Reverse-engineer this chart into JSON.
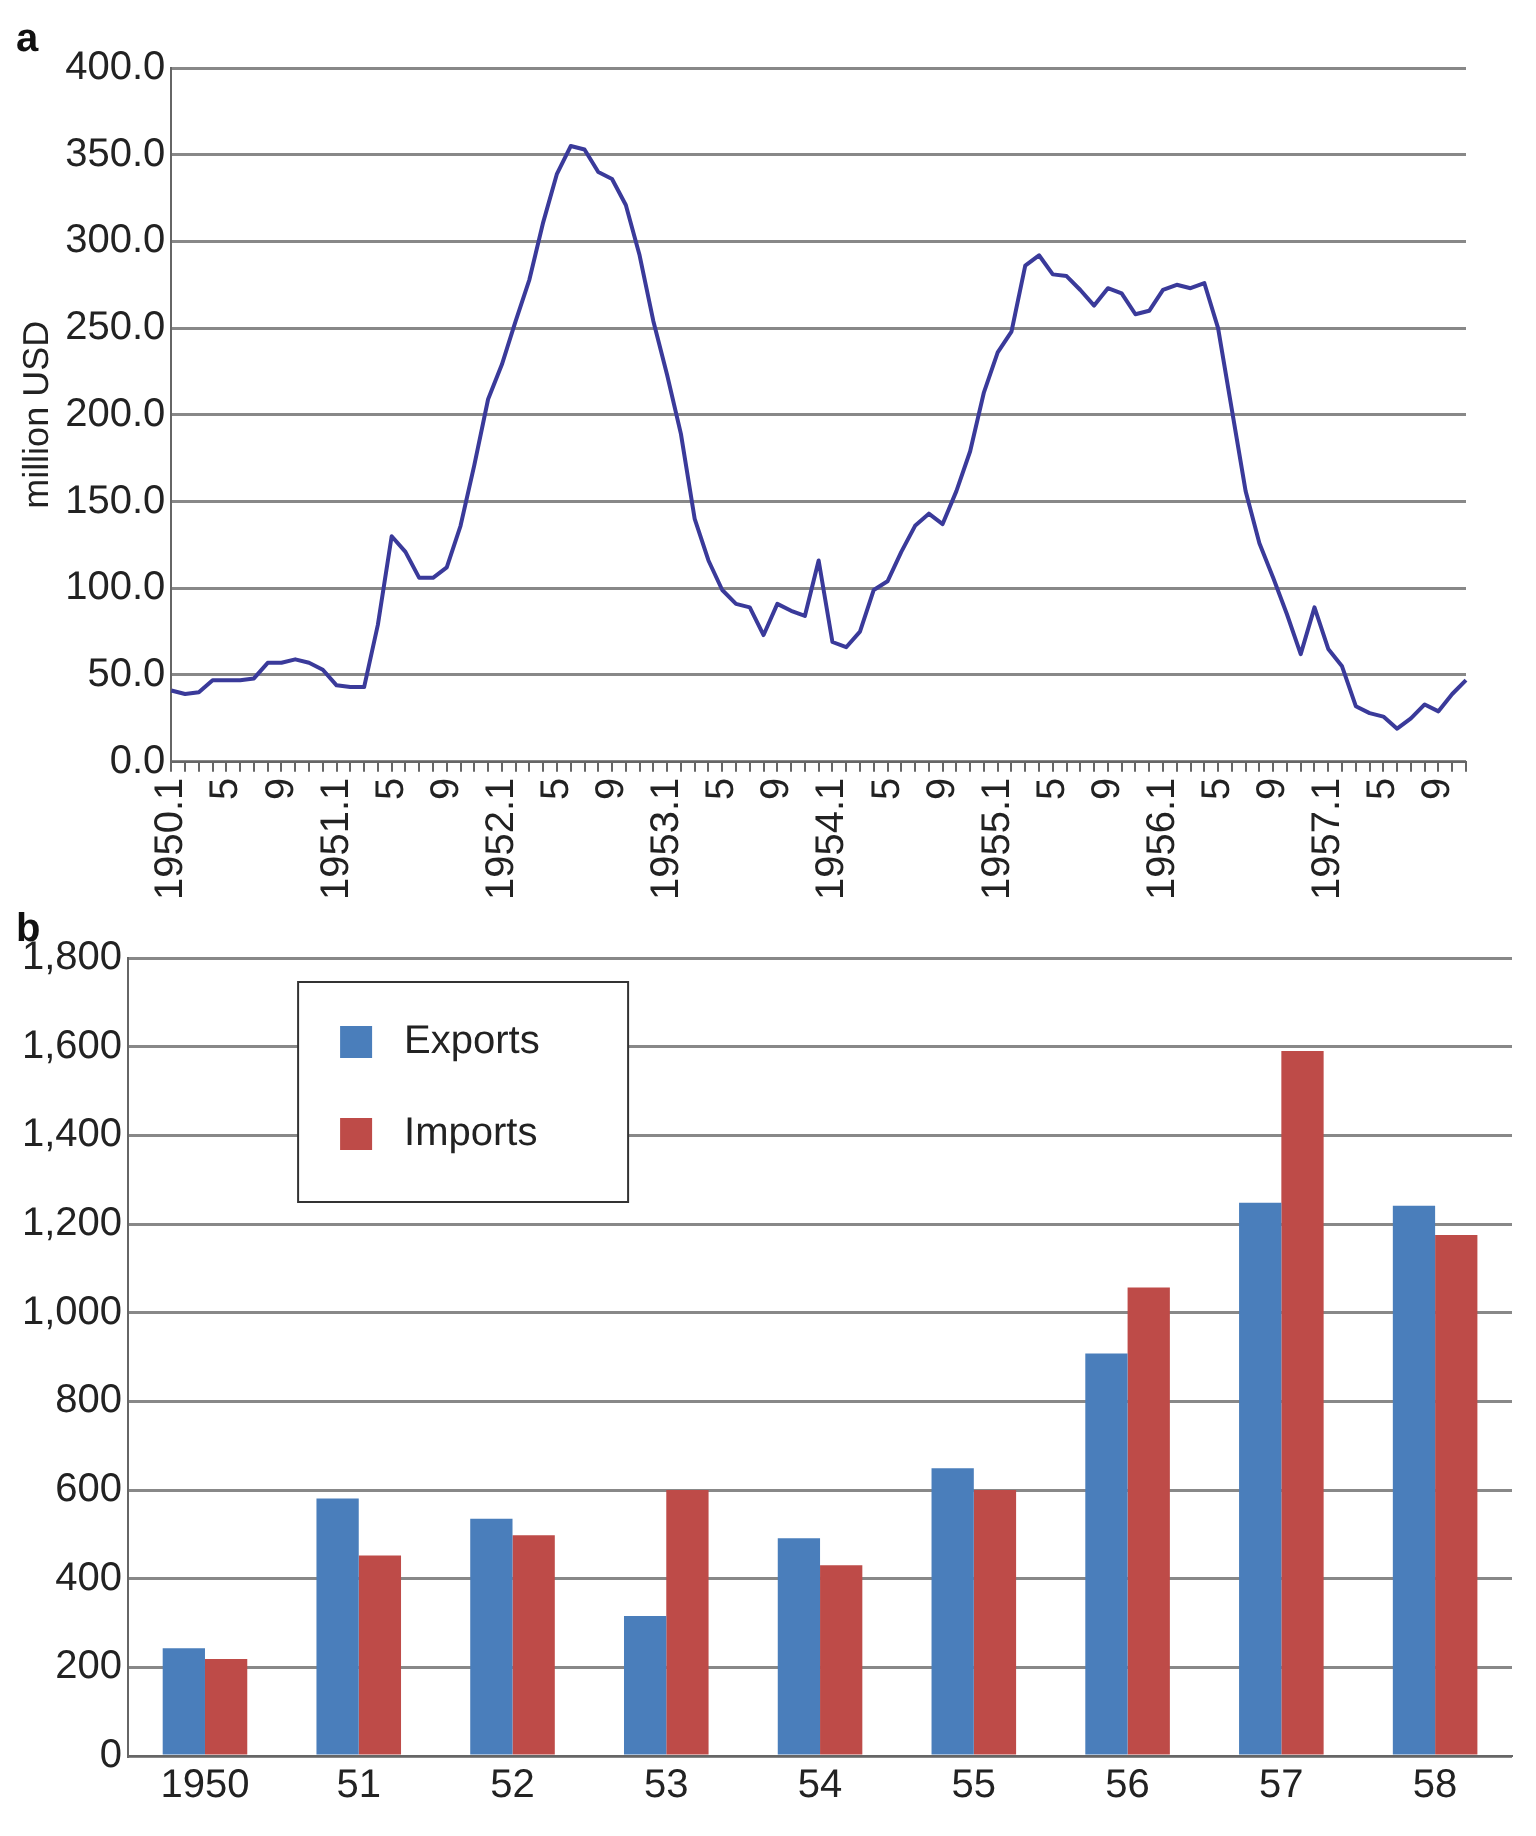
{
  "chart_data": [
    {
      "type": "line",
      "title": "a",
      "ylabel": "million USD",
      "marker": "none",
      "grid": "y",
      "legend": false,
      "categories": [
        "1950.1",
        null,
        null,
        null,
        "5",
        null,
        null,
        null,
        "9",
        null,
        null,
        null,
        "1951.1",
        null,
        null,
        null,
        "5",
        null,
        null,
        null,
        "9",
        null,
        null,
        null,
        "1952.1",
        null,
        null,
        null,
        "5",
        null,
        null,
        null,
        "9",
        null,
        null,
        null,
        "1953.1",
        null,
        null,
        null,
        "5",
        null,
        null,
        null,
        "9",
        null,
        null,
        null,
        "1954.1",
        null,
        null,
        null,
        "5",
        null,
        null,
        null,
        "9",
        null,
        null,
        null,
        "1955.1",
        null,
        null,
        null,
        "5",
        null,
        null,
        null,
        "9",
        null,
        null,
        null,
        "1956.1",
        null,
        null,
        null,
        "5",
        null,
        null,
        null,
        "9",
        null,
        null,
        null,
        "1957.1",
        null,
        null,
        null,
        "5",
        null,
        null,
        null,
        "9",
        null,
        null
      ],
      "series": [
        {
          "color": "#3a3a9a",
          "values": [
            41,
            39,
            40,
            47,
            47,
            47,
            48,
            57,
            57,
            59,
            57,
            53,
            44,
            43,
            43,
            79,
            130,
            121,
            106,
            106,
            112,
            136,
            171,
            209,
            229,
            254,
            278,
            311,
            339,
            355,
            353,
            340,
            336,
            321,
            292,
            254,
            223,
            189,
            140,
            116,
            99,
            91,
            89,
            73,
            91,
            87,
            84,
            116,
            69,
            66,
            75,
            99,
            104,
            121,
            136,
            143,
            137,
            156,
            179,
            213,
            236,
            248,
            286,
            292,
            281,
            280,
            272,
            263,
            273,
            270,
            258,
            260,
            272,
            275,
            273,
            276,
            250,
            203,
            156,
            126,
            106,
            85,
            62,
            89,
            65,
            55,
            32,
            28,
            26,
            19,
            25,
            33,
            29,
            39,
            47
          ]
        }
      ],
      "ylim": [
        0,
        400
      ],
      "yticks": [
        {
          "value": 0,
          "label": "0.0"
        },
        {
          "value": 50,
          "label": "50.0"
        },
        {
          "value": 100,
          "label": "100.0"
        },
        {
          "value": 150,
          "label": "150.0"
        },
        {
          "value": 200,
          "label": "200.0"
        },
        {
          "value": 250,
          "label": "250.0"
        },
        {
          "value": 300,
          "label": "300.0"
        },
        {
          "value": 350,
          "label": "350.0"
        },
        {
          "value": 400,
          "label": "400.0"
        }
      ]
    },
    {
      "type": "bar",
      "title": "b",
      "grid": "y",
      "legend": "top left",
      "categories": [
        "1950",
        "51",
        "52",
        "53",
        "54",
        "55",
        "56",
        "57",
        "58"
      ],
      "series": [
        {
          "name": "Exports",
          "color": "#4a7ebb",
          "values": [
            243,
            581,
            535,
            316,
            491,
            649,
            908,
            1248,
            1241
          ]
        },
        {
          "name": "Imports",
          "color": "#be4b48",
          "values": [
            219,
            452,
            498,
            600,
            430,
            600,
            1057,
            1590,
            1175
          ]
        }
      ],
      "ylim": [
        0,
        1800
      ],
      "yticks": [
        0,
        200,
        400,
        600,
        800,
        {
          "value": 1000,
          "label": "1,000"
        },
        {
          "value": 1200,
          "label": "1,200"
        },
        {
          "value": 1400,
          "label": "1,400"
        },
        {
          "value": 1600,
          "label": "1,600"
        },
        {
          "value": 1800,
          "label": "1,800"
        }
      ]
    }
  ]
}
